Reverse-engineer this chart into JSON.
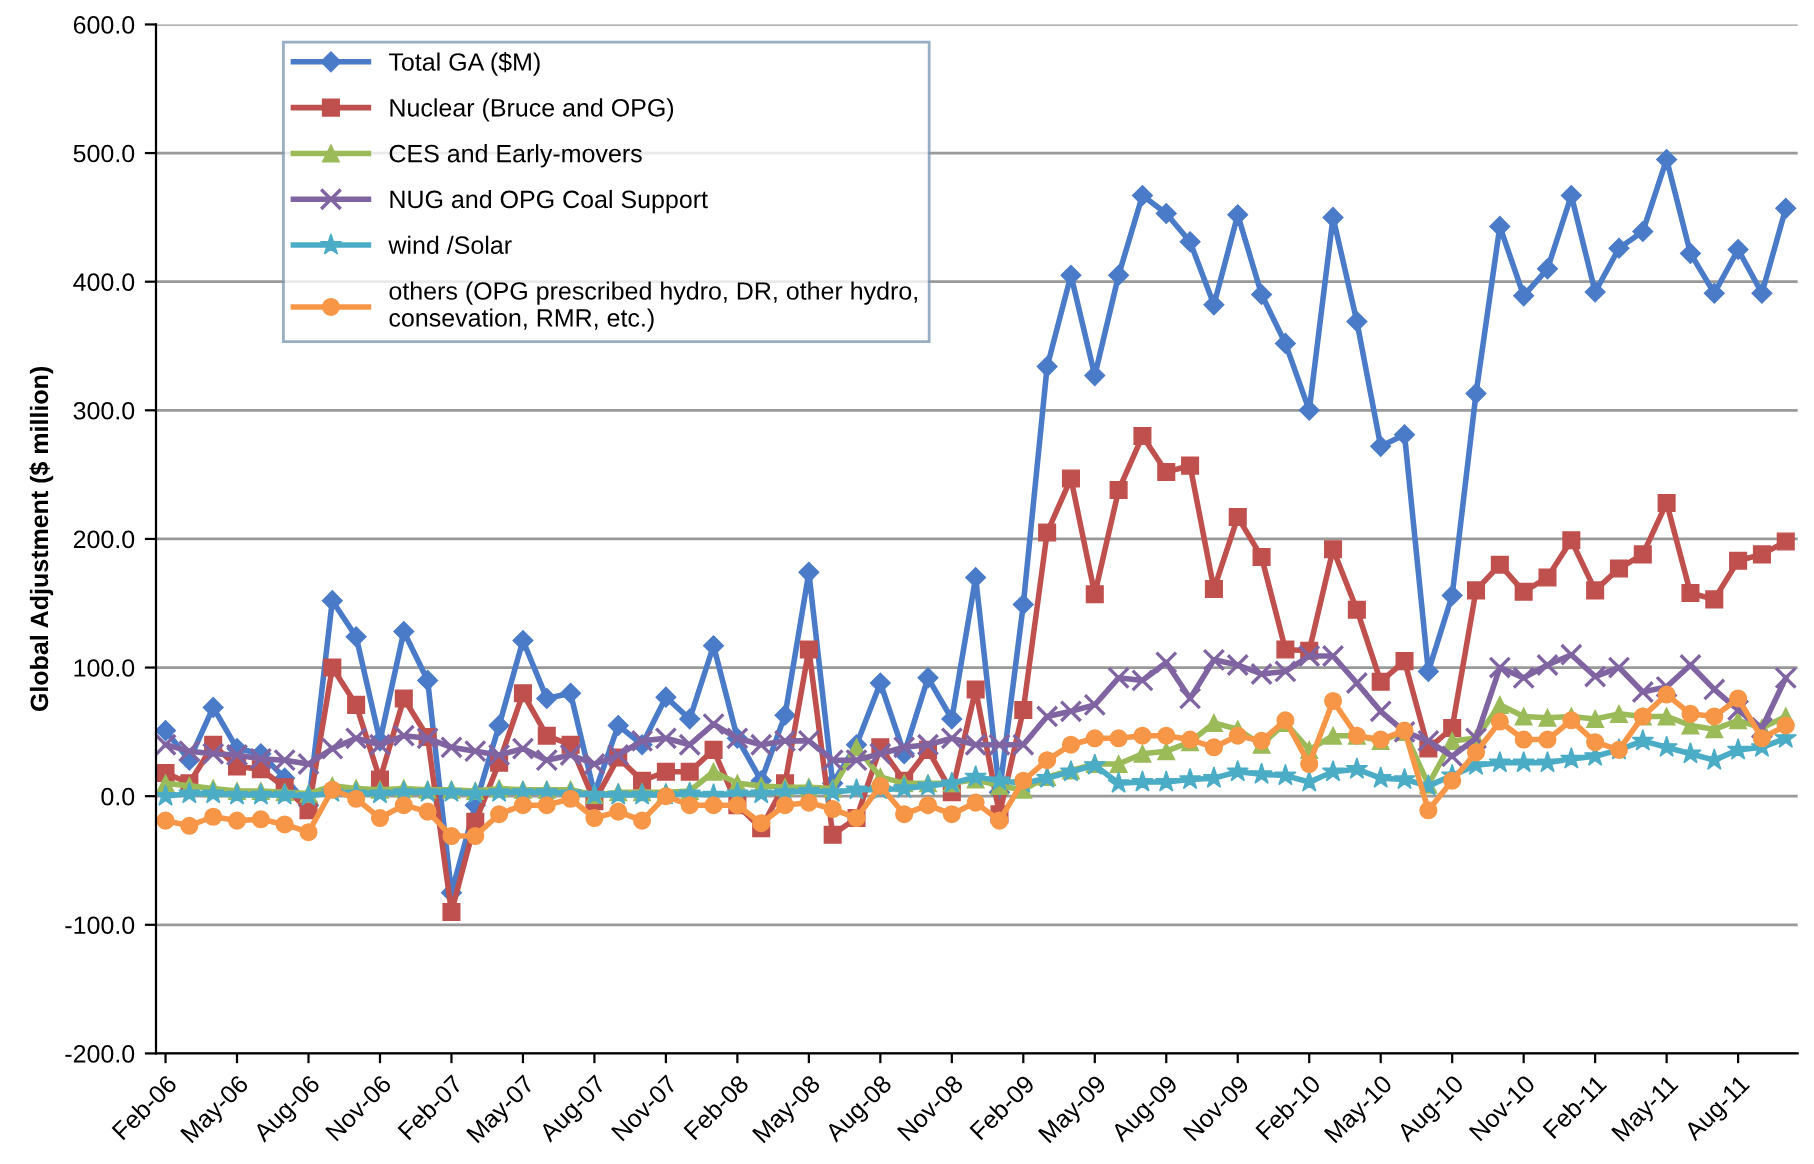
{
  "chart_data": {
    "type": "line",
    "ylabel": "Global Adjustment ($ million)",
    "categories": [
      "Feb-06",
      null,
      null,
      "May-06",
      null,
      null,
      "Aug-06",
      null,
      null,
      "Nov-06",
      null,
      null,
      "Feb-07",
      null,
      null,
      "May-07",
      null,
      null,
      "Aug-07",
      null,
      null,
      "Nov-07",
      null,
      null,
      "Feb-08",
      null,
      null,
      "May-08",
      null,
      null,
      "Aug-08",
      null,
      null,
      "Nov-08",
      null,
      null,
      "Feb-09",
      null,
      null,
      "May-09",
      null,
      null,
      "Aug-09",
      null,
      null,
      "Nov-09",
      null,
      null,
      "Feb-10",
      null,
      null,
      "May-10",
      null,
      null,
      "Aug-10",
      null,
      null,
      "Nov-10",
      null,
      null,
      "Feb-11",
      null,
      null,
      "May-11",
      null,
      null,
      "Aug-11",
      null,
      null
    ],
    "series": [
      {
        "name": "Total GA ($M)",
        "color": "#4a7bc8",
        "marker": "diamond",
        "values": [
          51,
          28,
          69,
          37,
          33,
          14,
          -7,
          152,
          124,
          43,
          128,
          90,
          -75,
          -7,
          55,
          121,
          76,
          80,
          2,
          55,
          40,
          77,
          60,
          117,
          45,
          12,
          63,
          174,
          10,
          40,
          88,
          33,
          92,
          60,
          170,
          3,
          149,
          334,
          405,
          327,
          405,
          467,
          453,
          431,
          382,
          452,
          390,
          352,
          300,
          450,
          369,
          272,
          281,
          97,
          156,
          313,
          443,
          389,
          410,
          467,
          392,
          426,
          439,
          495,
          422,
          391,
          425,
          391,
          457
        ]
      },
      {
        "name": "Nuclear (Bruce and OPG)",
        "color": "#c0504d",
        "marker": "square",
        "values": [
          18,
          10,
          40,
          23,
          21,
          7,
          -11,
          100,
          71,
          13,
          76,
          46,
          -90,
          -20,
          26,
          80,
          47,
          40,
          -4,
          30,
          12,
          19,
          19,
          36,
          -7,
          -25,
          10,
          114,
          -30,
          -17,
          38,
          12,
          36,
          3,
          83,
          -14,
          67,
          205,
          247,
          157,
          238,
          280,
          252,
          257,
          161,
          217,
          186,
          114,
          113,
          192,
          145,
          89,
          105,
          37,
          53,
          160,
          180,
          159,
          170,
          199,
          160,
          177,
          188,
          228,
          158,
          153,
          183,
          188,
          198
        ]
      },
      {
        "name": "CES and Early-movers",
        "color": "#9bbb59",
        "marker": "triangle",
        "values": [
          10,
          8,
          6,
          4,
          4,
          3,
          2,
          8,
          6,
          5,
          6,
          5,
          5,
          4,
          6,
          5,
          5,
          5,
          1,
          3,
          3,
          3,
          4,
          19,
          10,
          8,
          7,
          7,
          6,
          38,
          15,
          10,
          10,
          10,
          13,
          8,
          5,
          15,
          20,
          25,
          25,
          33,
          35,
          42,
          57,
          52,
          40,
          57,
          36,
          47,
          47,
          43,
          50,
          9,
          43,
          45,
          71,
          62,
          61,
          62,
          60,
          64,
          62,
          62,
          55,
          52,
          59,
          53,
          62
        ]
      },
      {
        "name": "NUG and OPG Coal Support",
        "color": "#8064a2",
        "marker": "cross",
        "values": [
          40,
          35,
          33,
          32,
          29,
          28,
          25,
          37,
          45,
          40,
          47,
          45,
          38,
          35,
          32,
          37,
          28,
          32,
          25,
          32,
          43,
          45,
          40,
          56,
          45,
          40,
          43,
          43,
          28,
          28,
          33,
          38,
          40,
          45,
          40,
          40,
          40,
          62,
          66,
          71,
          92,
          90,
          104,
          76,
          106,
          102,
          95,
          97,
          109,
          109,
          88,
          66,
          50,
          43,
          31,
          45,
          100,
          92,
          102,
          110,
          93,
          100,
          81,
          85,
          102,
          83,
          67,
          53,
          92
        ]
      },
      {
        "name": "wind /Solar",
        "color": "#4bacc6",
        "marker": "star",
        "values": [
          0,
          2,
          2,
          1,
          1,
          1,
          0,
          3,
          2,
          2,
          3,
          3,
          3,
          2,
          3,
          3,
          3,
          2,
          1,
          1,
          1,
          1,
          2,
          1,
          2,
          2,
          3,
          4,
          3,
          5,
          5,
          6,
          8,
          10,
          15,
          12,
          10,
          14,
          19,
          24,
          10,
          11,
          11,
          13,
          14,
          19,
          17,
          16,
          11,
          19,
          21,
          14,
          13,
          8,
          16,
          24,
          26,
          26,
          26,
          29,
          31,
          36,
          43,
          38,
          33,
          28,
          36,
          38,
          45
        ]
      },
      {
        "name": "others (OPG prescribed hydro, DR, other hydro,\nconsevation, RMR, etc.)",
        "color": "#f79646",
        "marker": "circle",
        "values": [
          -19,
          -23,
          -16,
          -19,
          -18,
          -22,
          -28,
          5,
          -2,
          -17,
          -7,
          -12,
          -31,
          -31,
          -14,
          -7,
          -7,
          -2,
          -17,
          -12,
          -19,
          0,
          -7,
          -7,
          -7,
          -21,
          -7,
          -5,
          -10,
          -17,
          8,
          -14,
          -7,
          -14,
          -5,
          -19,
          12,
          28,
          40,
          45,
          45,
          47,
          47,
          44,
          38,
          47,
          43,
          59,
          25,
          74,
          47,
          44,
          51,
          -11,
          12,
          34,
          58,
          44,
          44,
          59,
          42,
          36,
          62,
          79,
          64,
          62,
          76,
          45,
          55
        ]
      }
    ],
    "ylim": [
      -200,
      600
    ],
    "yticks": [
      {
        "value": -200,
        "label": "-200.0"
      },
      {
        "value": -100,
        "label": "-100.0"
      },
      {
        "value": 0,
        "label": "0.0"
      },
      {
        "value": 100,
        "label": "100.0"
      },
      {
        "value": 200,
        "label": "200.0"
      },
      {
        "value": 300,
        "label": "300.0"
      },
      {
        "value": 400,
        "label": "400.0"
      },
      {
        "value": 500,
        "label": "500.0"
      },
      {
        "value": 600,
        "label": "600.0"
      }
    ],
    "grid": "y",
    "legend": "top left",
    "line_style": "solid"
  }
}
